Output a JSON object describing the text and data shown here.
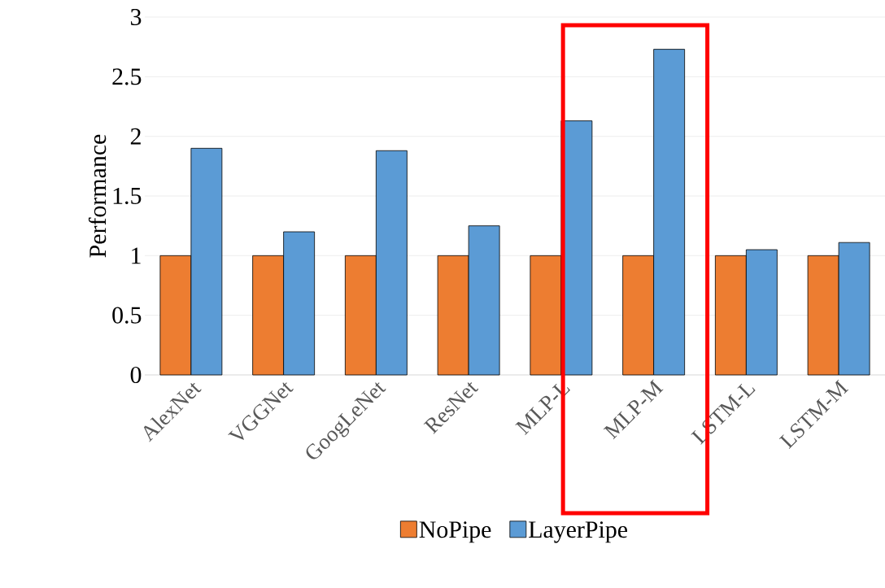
{
  "chart_data": {
    "type": "bar",
    "ylabel": "Performance",
    "categories": [
      "AlexNet",
      "VGGNet",
      "GoogLeNet",
      "ResNet",
      "MLP-L",
      "MLP-M",
      "LSTM-L",
      "LSTM-M"
    ],
    "series": [
      {
        "name": "NoPipe",
        "color": "#ed7d31",
        "values": [
          1,
          1,
          1,
          1,
          1,
          1,
          1,
          1
        ]
      },
      {
        "name": "LayerPipe",
        "color": "#5b9bd5",
        "values": [
          1.9,
          1.2,
          1.88,
          1.25,
          2.13,
          2.73,
          1.05,
          1.11
        ]
      }
    ],
    "ylim": [
      0,
      3
    ],
    "yticks": [
      0,
      0.5,
      1,
      1.5,
      2,
      2.5,
      3
    ],
    "grid": "y",
    "legend": "bottom"
  }
}
